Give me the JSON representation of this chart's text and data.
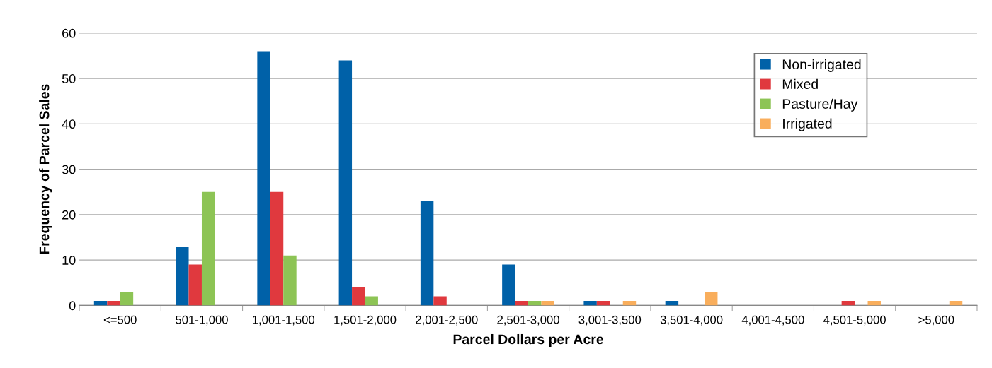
{
  "chart_data": {
    "type": "bar",
    "xlabel": "Parcel Dollars per Acre",
    "ylabel": "Frequency of Parcel Sales",
    "categories": [
      "<=500",
      "501-1,000",
      "1,001-1,500",
      "1,501-2,000",
      "2,001-2,500",
      "2,501-3,000",
      "3,001-3,500",
      "3,501-4,000",
      "4,001-4,500",
      "4,501-5,000",
      ">5,000"
    ],
    "series": [
      {
        "name": "Non-irrigated",
        "color": "#0061a8",
        "values": [
          1,
          13,
          56,
          54,
          23,
          9,
          1,
          1,
          0,
          0,
          0
        ]
      },
      {
        "name": "Mixed",
        "color": "#e0393e",
        "values": [
          1,
          9,
          25,
          4,
          2,
          1,
          1,
          0,
          0,
          1,
          0
        ]
      },
      {
        "name": "Pasture/Hay",
        "color": "#8dc455",
        "values": [
          3,
          25,
          11,
          2,
          0,
          1,
          0,
          0,
          0,
          0,
          0
        ]
      },
      {
        "name": "Irrigated",
        "color": "#f9ae5c",
        "values": [
          0,
          0,
          0,
          0,
          0,
          1,
          1,
          3,
          0,
          1,
          1
        ]
      }
    ],
    "ylim": [
      0,
      60
    ],
    "yticks": [
      0,
      10,
      20,
      30,
      40,
      50,
      60
    ],
    "grid": "y",
    "legend": "top right"
  }
}
